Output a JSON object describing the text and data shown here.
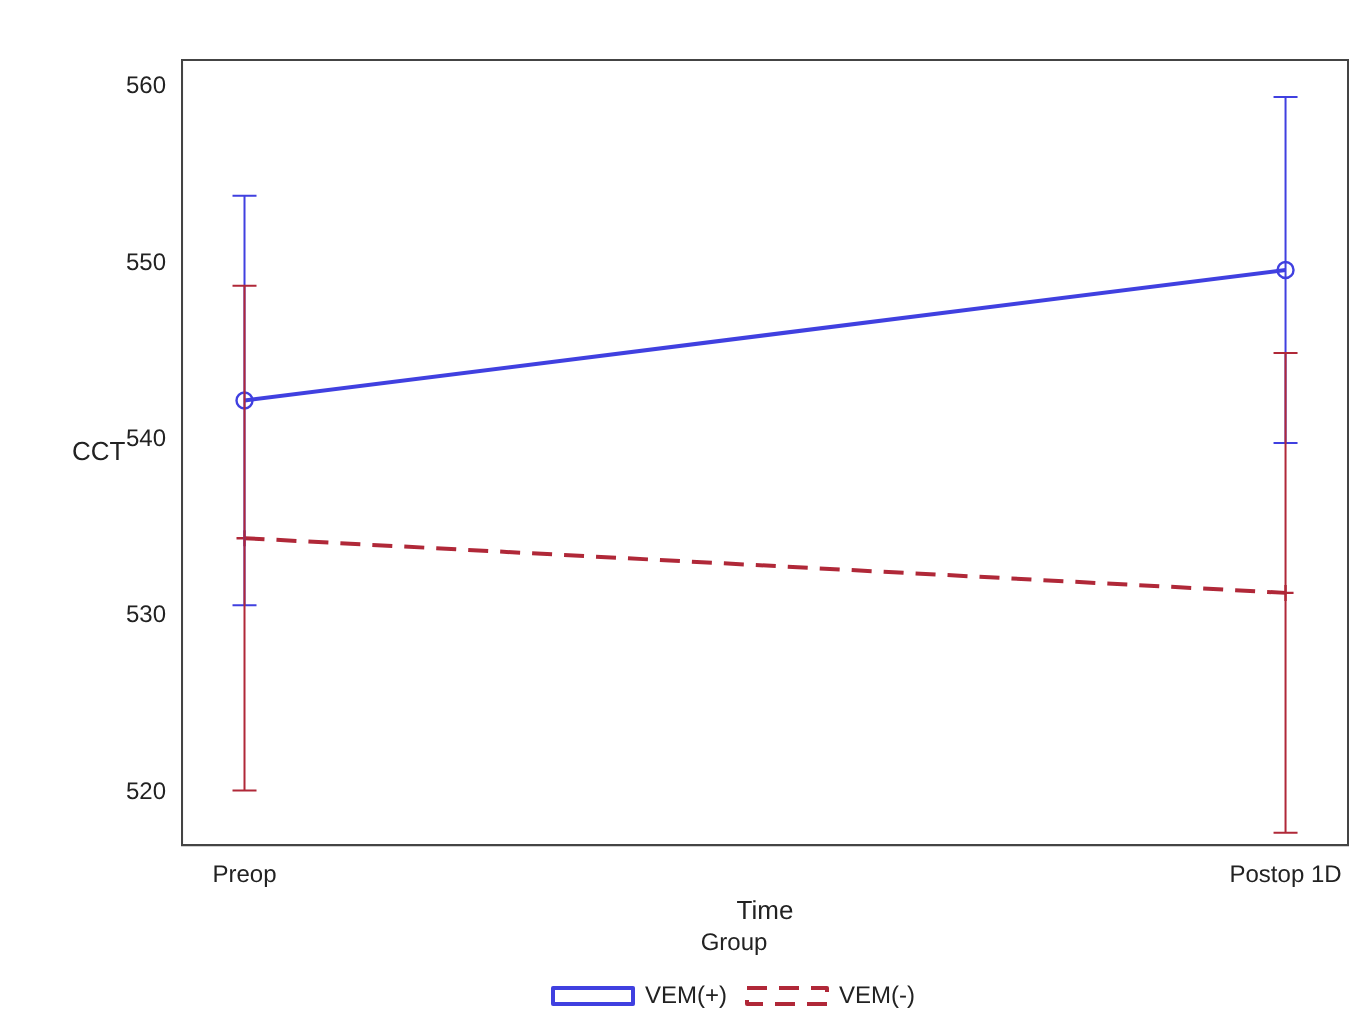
{
  "chart_data": {
    "type": "line",
    "xlabel": "Time",
    "ylabel": "CCT",
    "legend_title": "Group",
    "legend": "bottom",
    "categories": [
      "Preop",
      "Postop 1D"
    ],
    "ylim": [
      517,
      561.5
    ],
    "yticks": [
      520,
      530,
      540,
      550,
      560
    ],
    "grid": false,
    "series": [
      {
        "name": "VEM(+)",
        "color": "#4040e0",
        "values": [
          542.2,
          549.6
        ],
        "errors": [
          11.6,
          9.8
        ],
        "marker": "circle",
        "line_style": "solid"
      },
      {
        "name": "VEM(-)",
        "color": "#b02838",
        "values": [
          534.4,
          531.3
        ],
        "errors": [
          14.3,
          13.6
        ],
        "marker": "cross",
        "line_style": "dashed"
      }
    ]
  }
}
